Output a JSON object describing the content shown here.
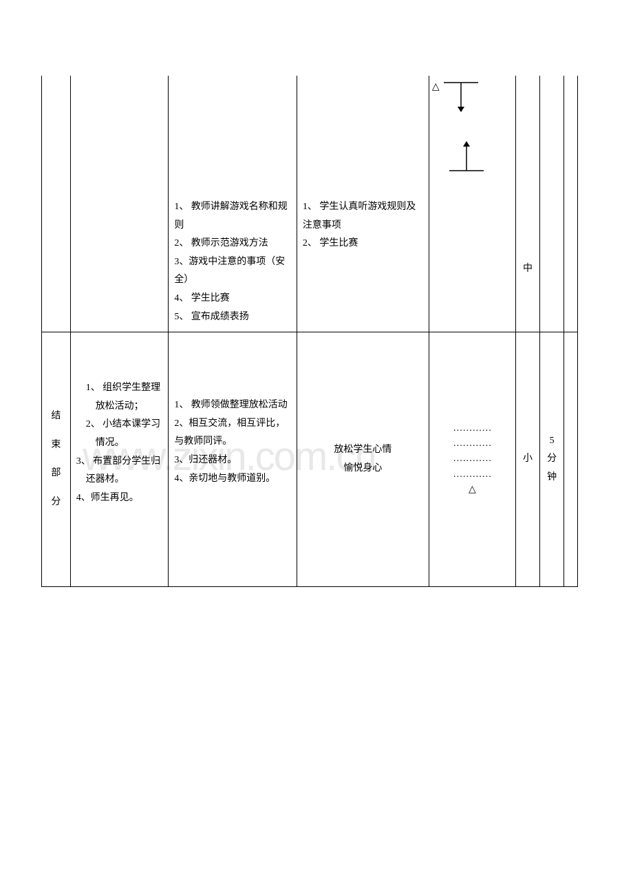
{
  "watermark_text": "www.zixin.com.cn",
  "row1": {
    "teacher_steps": "1、 教师讲解游戏名称和规则\n2、 教师示范游戏方法\n3、游戏中注意的事项（安全）\n4、 学生比赛\n5、 宣布成绩表扬",
    "student_steps": "1、 学生认真听游戏规则及注意事项\n2、 学生比赛",
    "intensity": "中",
    "diagram": {
      "triangle": "△",
      "top_bar_width": 50,
      "arrow_down_length": 40,
      "bottom_bar_width": 50,
      "arrow_up_length": 40,
      "line_color": "#000000"
    }
  },
  "row2": {
    "section_chars": [
      "结",
      "束",
      "部",
      "分"
    ],
    "content1_items": [
      "1、 组织学生整理放松活动；",
      "2、 小结本课学习情况。",
      "3、 布置部分学生归还器材。",
      "4、师生再见。"
    ],
    "content2_items": [
      "1、 教师领做整理放松活动",
      "2、相互交流，相互评比，与教师同评。",
      "3、归还器材。",
      "4、亲切地与教师道别。"
    ],
    "content3": "放松学生心情\n愉悦身心",
    "diagram_dots": [
      "…………",
      "…………",
      "…………",
      "…………"
    ],
    "diagram_triangle": "△",
    "intensity": "小",
    "time": [
      "5",
      "分",
      "钟"
    ]
  },
  "colors": {
    "border": "#000000",
    "text": "#000000",
    "background": "#ffffff",
    "watermark": "#e8e8e8"
  }
}
